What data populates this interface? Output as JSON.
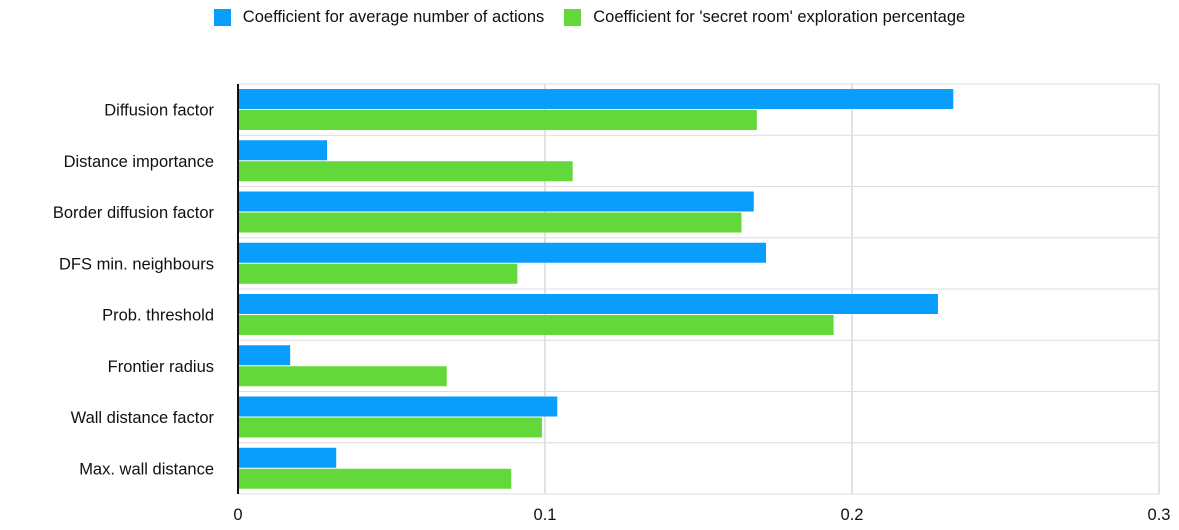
{
  "chart_data": {
    "type": "bar",
    "orientation": "horizontal",
    "title": "",
    "xlabel": "",
    "ylabel": "",
    "categories": [
      "Diffusion factor",
      "Distance importance",
      "Border diffusion factor",
      "DFS min. neighbours",
      "Prob. threshold",
      "Frontier radius",
      "Wall distance factor",
      "Max. wall distance"
    ],
    "series": [
      {
        "name": "Coefficient for average number of actions",
        "color": "#0a9efc",
        "values": [
          0.233,
          0.029,
          0.168,
          0.172,
          0.228,
          0.017,
          0.104,
          0.032
        ]
      },
      {
        "name": "Coefficient for 'secret room' exploration percentage",
        "color": "#63d83a",
        "values": [
          0.169,
          0.109,
          0.164,
          0.091,
          0.194,
          0.068,
          0.099,
          0.089
        ]
      }
    ],
    "xlim": [
      0,
      0.3
    ],
    "xticks": [
      0,
      0.1,
      0.2,
      0.3
    ],
    "xtick_labels": [
      "0",
      "0.1",
      "0.2",
      "0.3"
    ],
    "grid": true,
    "legend_position": "top-center"
  }
}
